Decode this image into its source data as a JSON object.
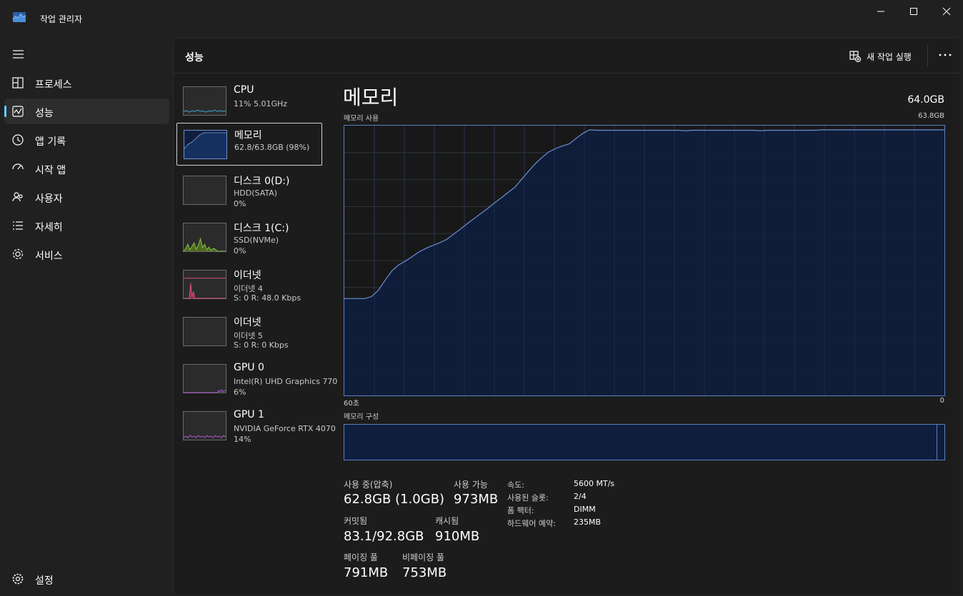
{
  "app": {
    "title": "작업 관리자"
  },
  "nav": {
    "items": [
      {
        "label": "프로세스",
        "icon": "processes-icon"
      },
      {
        "label": "성능",
        "icon": "performance-icon",
        "active": true
      },
      {
        "label": "앱 기록",
        "icon": "history-icon"
      },
      {
        "label": "시작 앱",
        "icon": "startup-icon"
      },
      {
        "label": "사용자",
        "icon": "users-icon"
      },
      {
        "label": "자세히",
        "icon": "details-icon"
      },
      {
        "label": "서비스",
        "icon": "services-icon"
      }
    ],
    "settings_label": "설정"
  },
  "header": {
    "title": "성능",
    "new_task_label": "새 작업 실행"
  },
  "devices": [
    {
      "name": "CPU",
      "sub1": "11% 5.01GHz",
      "sub2": ""
    },
    {
      "name": "메모리",
      "sub1": "62.8/63.8GB (98%)",
      "sub2": ""
    },
    {
      "name": "디스크 0(D:)",
      "sub1": "HDD(SATA)",
      "sub2": "0%"
    },
    {
      "name": "디스크 1(C:)",
      "sub1": "SSD(NVMe)",
      "sub2": "0%"
    },
    {
      "name": "이더넷",
      "sub1": "이더넷 4",
      "sub2": "S: 0  R: 48.0 Kbps"
    },
    {
      "name": "이더넷",
      "sub1": "이더넷 5",
      "sub2": "S: 0  R: 0 Kbps"
    },
    {
      "name": "GPU 0",
      "sub1": "Intel(R) UHD Graphics 770",
      "sub2": "6%"
    },
    {
      "name": "GPU 1",
      "sub1": "NVIDIA GeForce RTX 4070",
      "sub2": "14%"
    }
  ],
  "detail": {
    "title": "메모리",
    "total": "64.0GB",
    "usage_label": "메모리 사용",
    "usage_max": "63.8GB",
    "time_left": "60초",
    "time_right": "0",
    "composition_label": "메모리 구성",
    "stats": {
      "in_use_label": "사용 중(압축)",
      "in_use_value": "62.8GB (1.0GB)",
      "available_label": "사용 가능",
      "available_value": "973MB",
      "committed_label": "커밋됨",
      "committed_value": "83.1/92.8GB",
      "cached_label": "캐시됨",
      "cached_value": "910MB",
      "paged_label": "페이징 풀",
      "paged_value": "791MB",
      "nonpaged_label": "비페이징 풀",
      "nonpaged_value": "753MB"
    },
    "specs": [
      {
        "label": "속도:",
        "value": "5600 MT/s"
      },
      {
        "label": "사용된 슬롯:",
        "value": "2/4"
      },
      {
        "label": "폼 팩터:",
        "value": "DIMM"
      },
      {
        "label": "하드웨어 예약:",
        "value": "235MB"
      }
    ]
  },
  "chart_data": {
    "type": "area",
    "ylim": [
      0,
      63.8
    ],
    "series": [
      {
        "values": [
          22.9,
          22.9,
          22.9,
          22.9,
          23.4,
          24.9,
          27.3,
          29.5,
          30.9,
          31.8,
          32.9,
          34.0,
          34.8,
          35.5,
          36.1,
          36.9,
          38.1,
          39.3,
          40.6,
          41.8,
          43.0,
          44.2,
          45.5,
          46.7,
          48.0,
          49.2,
          51.1,
          53.0,
          54.8,
          56.3,
          57.6,
          58.4,
          59.0,
          59.5,
          60.8,
          62.0,
          62.8,
          62.7,
          62.7,
          62.7,
          62.7,
          62.7,
          62.7,
          62.7,
          62.7,
          62.7,
          62.7,
          62.7,
          62.7,
          62.7,
          62.6,
          62.7,
          62.7,
          62.7,
          62.7,
          62.7,
          62.7,
          62.7,
          62.7,
          62.7,
          62.7,
          62.6,
          62.7,
          62.7,
          62.7,
          62.7,
          62.7,
          62.7,
          62.7,
          62.7,
          62.8,
          62.8,
          62.8,
          62.8,
          62.8,
          62.8,
          62.8,
          62.8,
          62.8,
          62.8,
          62.8,
          62.8,
          62.8,
          62.8,
          62.8,
          62.8,
          62.8,
          62.8,
          62.8
        ]
      }
    ]
  },
  "colors": {
    "memory_line": "#6d8fd6",
    "memory_fill": "#0f1e3d",
    "disk_line": "#8bc34a",
    "ethernet_line": "#d9527d",
    "gpu_line": "#b05cd6",
    "cpu_line": "#3fa9d9",
    "accent": "#60cdff"
  }
}
